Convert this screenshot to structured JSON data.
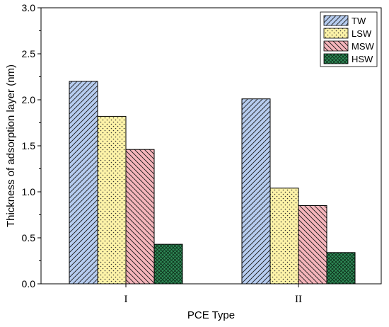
{
  "chart_data": {
    "type": "bar",
    "categories": [
      "I",
      "II"
    ],
    "series": [
      {
        "name": "TW",
        "values": [
          2.2,
          2.01
        ],
        "color": "#b7cdf0",
        "pattern": "diagonal-up"
      },
      {
        "name": "LSW",
        "values": [
          1.82,
          1.04
        ],
        "color": "#fdf3a8",
        "pattern": "dots"
      },
      {
        "name": "MSW",
        "values": [
          1.46,
          0.85
        ],
        "color": "#f5b5bb",
        "pattern": "diagonal-down"
      },
      {
        "name": "HSW",
        "values": [
          0.43,
          0.34
        ],
        "color": "#2e8b57",
        "pattern": "crosshatch"
      }
    ],
    "xlabel": "PCE Type",
    "ylabel": "Thickness of adsorption layer (nm)",
    "ylim": [
      0,
      3.0
    ],
    "yticks": [
      "0.0",
      "0.5",
      "1.0",
      "1.5",
      "2.0",
      "2.5",
      "3.0"
    ],
    "legend_position": "top-right",
    "grid": false
  }
}
